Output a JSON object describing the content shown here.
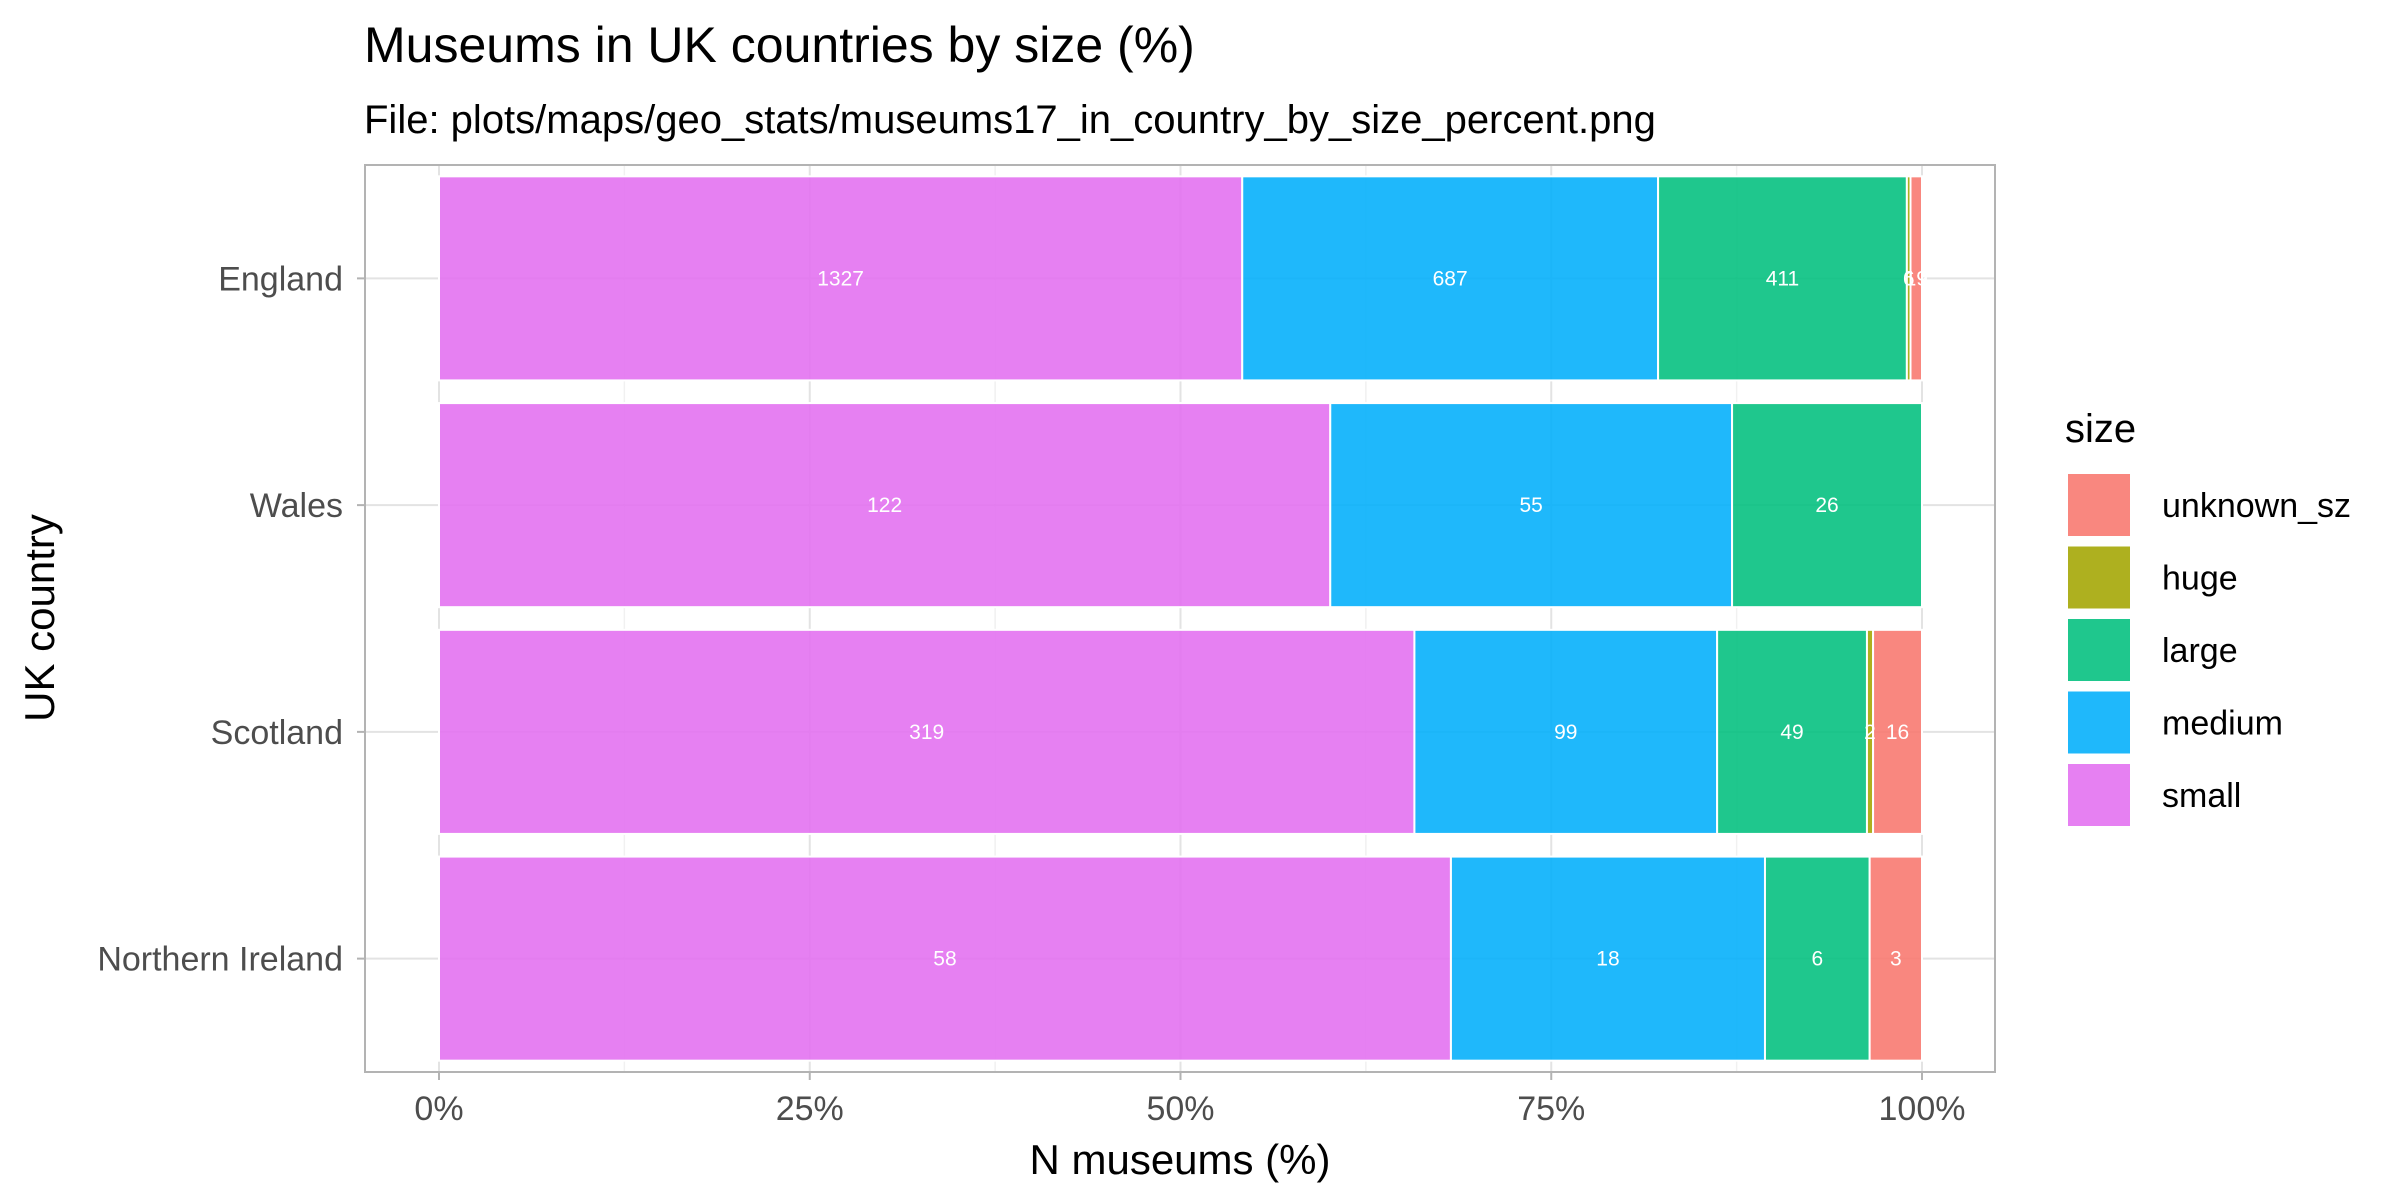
{
  "chart_data": {
    "type": "bar",
    "orientation": "horizontal",
    "stacked": "percent",
    "title": "Museums in UK countries by size (%)",
    "subtitle": "File: plots/maps/geo_stats/museums17_in_country_by_size_percent.png",
    "xlabel": "N museums (%)",
    "ylabel": "UK country",
    "xlim": [
      0,
      100
    ],
    "x_ticks": [
      "0%",
      "25%",
      "50%",
      "75%",
      "100%"
    ],
    "categories": [
      "England",
      "Wales",
      "Scotland",
      "Northern Ireland"
    ],
    "series": [
      {
        "name": "small",
        "color": "#E36EF0",
        "values": [
          1327,
          122,
          319,
          58
        ]
      },
      {
        "name": "medium",
        "color": "#00AEFA",
        "values": [
          687,
          55,
          99,
          18
        ]
      },
      {
        "name": "large",
        "color": "#00BF7D",
        "values": [
          411,
          26,
          49,
          6
        ]
      },
      {
        "name": "huge",
        "color": "#A3A500",
        "values": [
          6,
          0,
          2,
          0
        ]
      },
      {
        "name": "unknown_sz",
        "color": "#F8766D",
        "values": [
          19,
          0,
          16,
          3
        ]
      }
    ],
    "legend": {
      "title": "size",
      "position": "right",
      "items": [
        "unknown_sz",
        "huge",
        "large",
        "medium",
        "small"
      ]
    },
    "grid": true
  }
}
